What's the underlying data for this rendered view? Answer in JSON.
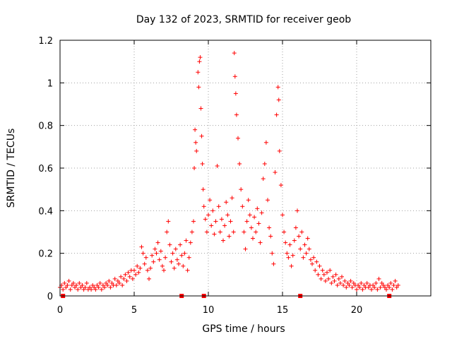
{
  "chart_data": {
    "type": "scatter",
    "title": "Day 132 of 2023, SRMTID for receiver geob",
    "xlabel": "GPS time / hours",
    "ylabel": "SRMTID / TECUs",
    "xlim": [
      0,
      25
    ],
    "ylim": [
      0,
      1.2
    ],
    "xticks": [
      0,
      5,
      10,
      15,
      20
    ],
    "yticks": [
      0,
      0.2,
      0.4,
      0.6,
      0.8,
      1,
      1.2
    ],
    "ytick_labels": [
      "0",
      "0.2",
      "0.4",
      "0.6",
      "0.8",
      "1",
      "1.2"
    ],
    "grid": true,
    "marker": "+",
    "color": "#ff0000",
    "series": [
      {
        "name": "SRMTID",
        "points": [
          [
            0.0,
            0.04
          ],
          [
            0.1,
            0.05
          ],
          [
            0.2,
            0.03
          ],
          [
            0.3,
            0.06
          ],
          [
            0.4,
            0.04
          ],
          [
            0.5,
            0.05
          ],
          [
            0.6,
            0.07
          ],
          [
            0.7,
            0.03
          ],
          [
            0.8,
            0.05
          ],
          [
            0.9,
            0.06
          ],
          [
            1.0,
            0.04
          ],
          [
            1.1,
            0.05
          ],
          [
            1.2,
            0.03
          ],
          [
            1.3,
            0.06
          ],
          [
            1.4,
            0.04
          ],
          [
            1.5,
            0.05
          ],
          [
            1.6,
            0.03
          ],
          [
            1.7,
            0.04
          ],
          [
            1.8,
            0.06
          ],
          [
            1.9,
            0.03
          ],
          [
            2.0,
            0.04
          ],
          [
            2.1,
            0.03
          ],
          [
            2.2,
            0.05
          ],
          [
            2.3,
            0.04
          ],
          [
            2.4,
            0.03
          ],
          [
            2.5,
            0.05
          ],
          [
            2.6,
            0.04
          ],
          [
            2.7,
            0.06
          ],
          [
            2.8,
            0.03
          ],
          [
            2.9,
            0.05
          ],
          [
            3.0,
            0.04
          ],
          [
            3.1,
            0.06
          ],
          [
            3.2,
            0.05
          ],
          [
            3.3,
            0.07
          ],
          [
            3.4,
            0.04
          ],
          [
            3.5,
            0.06
          ],
          [
            3.6,
            0.05
          ],
          [
            3.7,
            0.08
          ],
          [
            3.8,
            0.05
          ],
          [
            3.9,
            0.07
          ],
          [
            4.0,
            0.06
          ],
          [
            4.1,
            0.09
          ],
          [
            4.2,
            0.05
          ],
          [
            4.3,
            0.08
          ],
          [
            4.4,
            0.1
          ],
          [
            4.5,
            0.07
          ],
          [
            4.6,
            0.11
          ],
          [
            4.7,
            0.09
          ],
          [
            4.8,
            0.12
          ],
          [
            4.9,
            0.08
          ],
          [
            5.0,
            0.12
          ],
          [
            5.1,
            0.1
          ],
          [
            5.2,
            0.14
          ],
          [
            5.3,
            0.11
          ],
          [
            5.4,
            0.13
          ],
          [
            5.5,
            0.23
          ],
          [
            5.6,
            0.2
          ],
          [
            5.7,
            0.15
          ],
          [
            5.8,
            0.18
          ],
          [
            5.9,
            0.12
          ],
          [
            6.0,
            0.08
          ],
          [
            6.1,
            0.13
          ],
          [
            6.2,
            0.19
          ],
          [
            6.3,
            0.16
          ],
          [
            6.4,
            0.22
          ],
          [
            6.5,
            0.2
          ],
          [
            6.6,
            0.25
          ],
          [
            6.7,
            0.17
          ],
          [
            6.8,
            0.21
          ],
          [
            6.9,
            0.14
          ],
          [
            7.0,
            0.12
          ],
          [
            7.1,
            0.18
          ],
          [
            7.2,
            0.3
          ],
          [
            7.3,
            0.35
          ],
          [
            7.4,
            0.24
          ],
          [
            7.5,
            0.16
          ],
          [
            7.6,
            0.2
          ],
          [
            7.7,
            0.13
          ],
          [
            7.8,
            0.22
          ],
          [
            7.9,
            0.17
          ],
          [
            8.0,
            0.15
          ],
          [
            8.1,
            0.24
          ],
          [
            8.2,
            0.19
          ],
          [
            8.3,
            0.14
          ],
          [
            8.4,
            0.2
          ],
          [
            8.5,
            0.26
          ],
          [
            8.6,
            0.12
          ],
          [
            8.7,
            0.18
          ],
          [
            8.8,
            0.25
          ],
          [
            8.9,
            0.3
          ],
          [
            9.0,
            0.35
          ],
          [
            9.05,
            0.6
          ],
          [
            9.1,
            0.78
          ],
          [
            9.15,
            0.72
          ],
          [
            9.2,
            0.68
          ],
          [
            9.3,
            1.05
          ],
          [
            9.35,
            0.98
          ],
          [
            9.4,
            1.1
          ],
          [
            9.45,
            1.12
          ],
          [
            9.5,
            0.88
          ],
          [
            9.55,
            0.75
          ],
          [
            9.6,
            0.62
          ],
          [
            9.65,
            0.5
          ],
          [
            9.7,
            0.42
          ],
          [
            9.8,
            0.36
          ],
          [
            9.9,
            0.3
          ],
          [
            10.0,
            0.38
          ],
          [
            10.1,
            0.45
          ],
          [
            10.2,
            0.33
          ],
          [
            10.3,
            0.4
          ],
          [
            10.4,
            0.29
          ],
          [
            10.5,
            0.35
          ],
          [
            10.6,
            0.61
          ],
          [
            10.7,
            0.42
          ],
          [
            10.8,
            0.3
          ],
          [
            10.9,
            0.36
          ],
          [
            11.0,
            0.26
          ],
          [
            11.1,
            0.33
          ],
          [
            11.2,
            0.44
          ],
          [
            11.3,
            0.38
          ],
          [
            11.4,
            0.28
          ],
          [
            11.5,
            0.35
          ],
          [
            11.6,
            0.46
          ],
          [
            11.7,
            0.3
          ],
          [
            11.75,
            1.14
          ],
          [
            11.8,
            1.03
          ],
          [
            11.85,
            0.95
          ],
          [
            11.9,
            0.85
          ],
          [
            12.0,
            0.74
          ],
          [
            12.1,
            0.62
          ],
          [
            12.2,
            0.5
          ],
          [
            12.3,
            0.42
          ],
          [
            12.4,
            0.3
          ],
          [
            12.5,
            0.22
          ],
          [
            12.6,
            0.35
          ],
          [
            12.7,
            0.45
          ],
          [
            12.8,
            0.38
          ],
          [
            12.9,
            0.32
          ],
          [
            13.0,
            0.27
          ],
          [
            13.1,
            0.37
          ],
          [
            13.2,
            0.3
          ],
          [
            13.3,
            0.41
          ],
          [
            13.4,
            0.34
          ],
          [
            13.5,
            0.25
          ],
          [
            13.6,
            0.39
          ],
          [
            13.7,
            0.55
          ],
          [
            13.8,
            0.62
          ],
          [
            13.9,
            0.72
          ],
          [
            14.0,
            0.45
          ],
          [
            14.1,
            0.32
          ],
          [
            14.2,
            0.28
          ],
          [
            14.3,
            0.2
          ],
          [
            14.4,
            0.15
          ],
          [
            14.5,
            0.58
          ],
          [
            14.6,
            0.85
          ],
          [
            14.7,
            0.98
          ],
          [
            14.75,
            0.92
          ],
          [
            14.8,
            0.68
          ],
          [
            14.9,
            0.52
          ],
          [
            15.0,
            0.38
          ],
          [
            15.1,
            0.3
          ],
          [
            15.2,
            0.25
          ],
          [
            15.3,
            0.2
          ],
          [
            15.4,
            0.18
          ],
          [
            15.5,
            0.24
          ],
          [
            15.6,
            0.14
          ],
          [
            15.7,
            0.19
          ],
          [
            15.8,
            0.26
          ],
          [
            15.9,
            0.32
          ],
          [
            16.0,
            0.4
          ],
          [
            16.1,
            0.28
          ],
          [
            16.2,
            0.22
          ],
          [
            16.3,
            0.3
          ],
          [
            16.4,
            0.18
          ],
          [
            16.5,
            0.24
          ],
          [
            16.6,
            0.2
          ],
          [
            16.7,
            0.27
          ],
          [
            16.8,
            0.22
          ],
          [
            16.9,
            0.17
          ],
          [
            17.0,
            0.15
          ],
          [
            17.1,
            0.18
          ],
          [
            17.2,
            0.12
          ],
          [
            17.3,
            0.16
          ],
          [
            17.4,
            0.1
          ],
          [
            17.5,
            0.14
          ],
          [
            17.6,
            0.08
          ],
          [
            17.7,
            0.12
          ],
          [
            17.8,
            0.1
          ],
          [
            17.9,
            0.07
          ],
          [
            18.0,
            0.11
          ],
          [
            18.1,
            0.08
          ],
          [
            18.2,
            0.12
          ],
          [
            18.3,
            0.06
          ],
          [
            18.4,
            0.09
          ],
          [
            18.5,
            0.07
          ],
          [
            18.6,
            0.1
          ],
          [
            18.7,
            0.05
          ],
          [
            18.8,
            0.08
          ],
          [
            18.9,
            0.06
          ],
          [
            19.0,
            0.09
          ],
          [
            19.1,
            0.05
          ],
          [
            19.2,
            0.07
          ],
          [
            19.3,
            0.04
          ],
          [
            19.4,
            0.06
          ],
          [
            19.5,
            0.05
          ],
          [
            19.6,
            0.07
          ],
          [
            19.7,
            0.04
          ],
          [
            19.8,
            0.06
          ],
          [
            19.9,
            0.05
          ],
          [
            20.0,
            0.03
          ],
          [
            20.1,
            0.05
          ],
          [
            20.2,
            0.04
          ],
          [
            20.3,
            0.06
          ],
          [
            20.4,
            0.03
          ],
          [
            20.5,
            0.05
          ],
          [
            20.6,
            0.04
          ],
          [
            20.7,
            0.06
          ],
          [
            20.8,
            0.04
          ],
          [
            20.9,
            0.05
          ],
          [
            21.0,
            0.03
          ],
          [
            21.1,
            0.05
          ],
          [
            21.2,
            0.04
          ],
          [
            21.3,
            0.06
          ],
          [
            21.4,
            0.03
          ],
          [
            21.5,
            0.08
          ],
          [
            21.6,
            0.04
          ],
          [
            21.7,
            0.06
          ],
          [
            21.8,
            0.05
          ],
          [
            21.9,
            0.04
          ],
          [
            22.0,
            0.03
          ],
          [
            22.1,
            0.05
          ],
          [
            22.2,
            0.04
          ],
          [
            22.3,
            0.06
          ],
          [
            22.4,
            0.03
          ],
          [
            22.5,
            0.05
          ],
          [
            22.6,
            0.07
          ],
          [
            22.7,
            0.04
          ],
          [
            22.8,
            0.05
          ]
        ]
      }
    ],
    "zero_points": [
      0.2,
      8.2,
      9.7,
      16.2,
      22.2
    ]
  }
}
